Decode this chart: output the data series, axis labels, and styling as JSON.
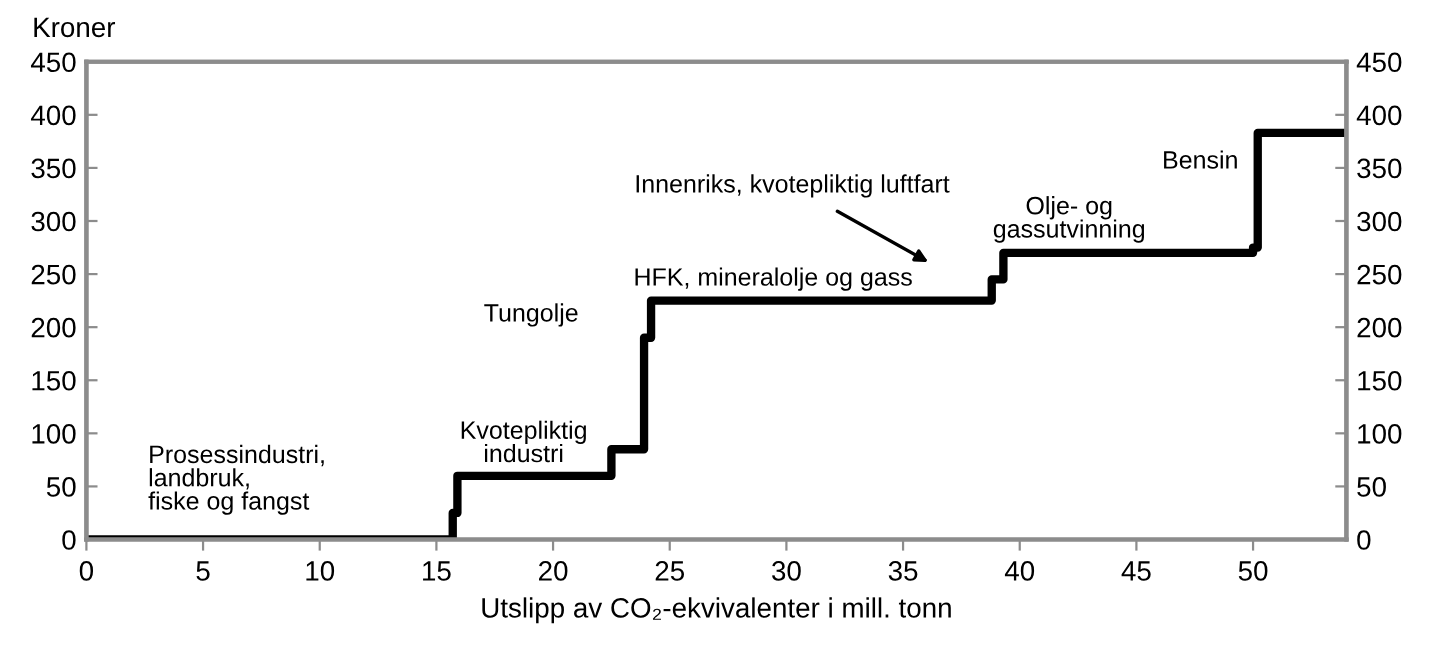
{
  "chart_data": {
    "type": "step",
    "x": [
      0,
      15.7,
      15.9,
      22.5,
      23.9,
      24.2,
      38.8,
      39.3,
      50.0,
      50.2,
      54
    ],
    "values": [
      0,
      25,
      60,
      85,
      190,
      225,
      245,
      270,
      275,
      383,
      383
    ],
    "color": "#000000",
    "xlabel": "Utslipp av CO₂-ekvivalenter i mill. tonn",
    "ylabel": "Kroner",
    "xlim": [
      0,
      54
    ],
    "xticks": [
      0,
      5,
      10,
      15,
      20,
      25,
      30,
      35,
      40,
      45,
      50
    ],
    "ylim": [
      0,
      450
    ],
    "yticks": [
      0,
      50,
      100,
      150,
      200,
      250,
      300,
      350,
      400,
      450
    ],
    "y2lim": [
      0,
      450
    ],
    "y2ticks": [
      0,
      50,
      100,
      150,
      200,
      250,
      300,
      350,
      400,
      450
    ],
    "grid": false,
    "legend": false,
    "annotations": [
      "Prosessindustri,\nlandbruk,\nfiske og fangst",
      "Kvotepliktig\nindustri",
      "Tungolje",
      "Innenriks, kvotepliktig luftfart",
      "HFK, mineralolje og gass",
      "Olje- og\ngassutvinning",
      "Bensin"
    ]
  }
}
